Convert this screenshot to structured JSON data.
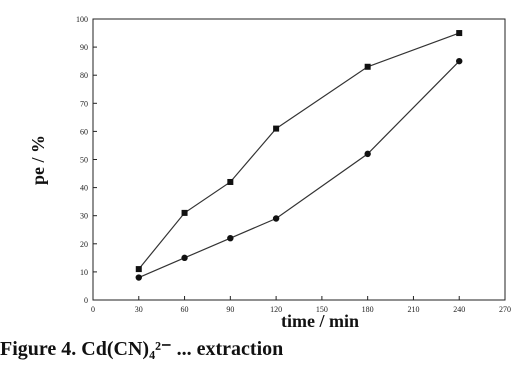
{
  "chart_data": {
    "type": "line",
    "xlabel": "time / min",
    "ylabel": "pe / %",
    "xlim": [
      0,
      270
    ],
    "ylim": [
      0,
      100
    ],
    "x_ticks": [
      0,
      30,
      60,
      90,
      120,
      150,
      180,
      210,
      240,
      270
    ],
    "y_ticks": [
      0,
      10,
      20,
      30,
      40,
      50,
      60,
      70,
      80,
      90,
      100
    ],
    "grid": false,
    "series": [
      {
        "marker": "square",
        "x": [
          30,
          60,
          90,
          120,
          180,
          240
        ],
        "y": [
          11,
          31,
          42,
          61,
          83,
          95
        ]
      },
      {
        "marker": "circle",
        "x": [
          30,
          60,
          90,
          120,
          180,
          240
        ],
        "y": [
          8,
          15,
          22,
          29,
          52,
          85
        ]
      }
    ]
  },
  "caption": {
    "text": "Figure 4. Cd(CN)₄²⁻ ... extraction"
  }
}
